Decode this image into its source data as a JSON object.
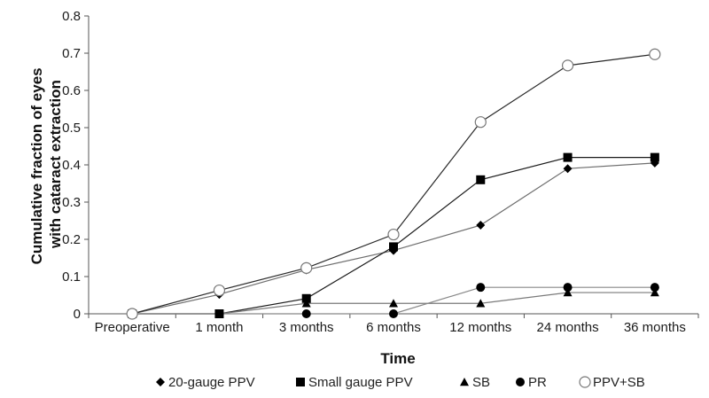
{
  "chart_data": {
    "type": "line",
    "xlabel": "Time",
    "ylabel_lines": [
      "Cumulative fraction of eyes",
      "with cataract extraction"
    ],
    "ylim": [
      0,
      0.8
    ],
    "y_ticks": [
      "0",
      "0.1",
      "0.2",
      "0.3",
      "0.4",
      "0.5",
      "0.6",
      "0.7",
      "0.8"
    ],
    "categories": [
      "Preoperative",
      "1 month",
      "3 months",
      "6 months",
      "12 months",
      "24 months",
      "36 months"
    ],
    "grid": false,
    "legend_position": "bottom",
    "series": [
      {
        "name": "20-gauge PPV",
        "marker": "diamond",
        "color": "#6e6e6e",
        "values": [
          0,
          0.052,
          0.118,
          0.17,
          0.238,
          0.39,
          0.405
        ]
      },
      {
        "name": "Small gauge PPV",
        "marker": "square",
        "color": "#1a1a1a",
        "values": [
          0,
          0,
          0.041,
          0.18,
          0.36,
          0.42,
          0.42
        ]
      },
      {
        "name": "SB",
        "marker": "triangle",
        "color": "#7a7a7a",
        "values": [
          0,
          0,
          0.028,
          0.028,
          0.028,
          0.057,
          0.057
        ]
      },
      {
        "name": "PR",
        "marker": "circle",
        "color": "#888888",
        "values": [
          0,
          0,
          0,
          0,
          0.071,
          0.071,
          0.071
        ]
      },
      {
        "name": "PPV+SB",
        "marker": "open-circle",
        "color": "#2a2a2a",
        "values": [
          0,
          0.063,
          0.123,
          0.213,
          0.515,
          0.667,
          0.697
        ]
      }
    ]
  }
}
